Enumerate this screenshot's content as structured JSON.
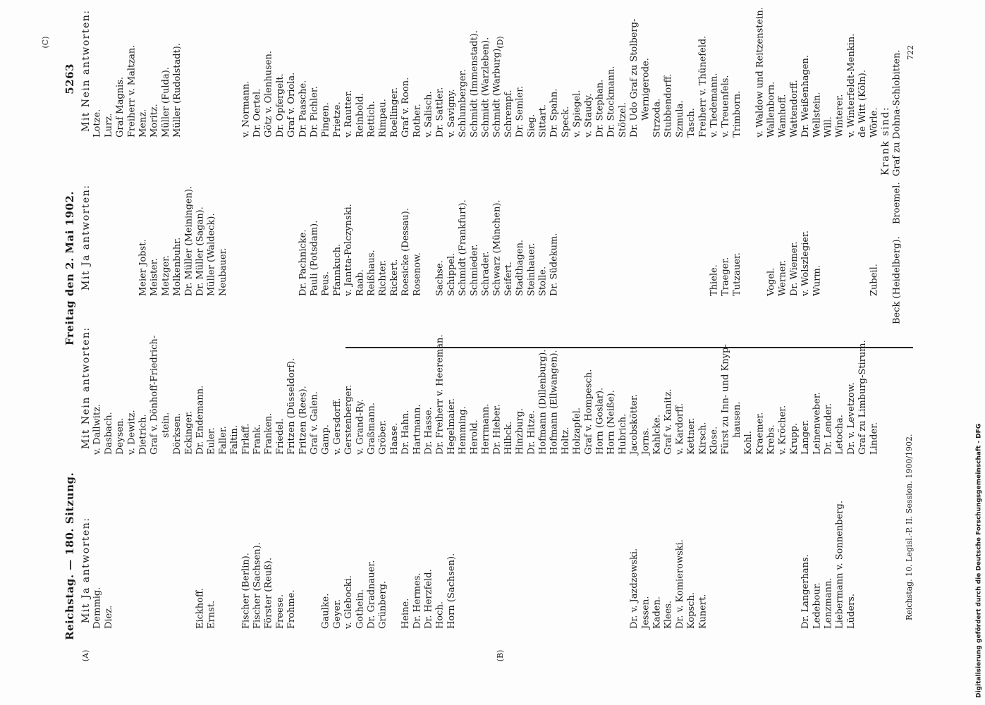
{
  "header": {
    "left": "Reichstag. — 180. Sitzung.",
    "center": "Freitag den 2. Mai 1902.",
    "page": "5263"
  },
  "margin_marks": [
    "(A)",
    "(B)",
    "(C)",
    "(D)"
  ],
  "columns": [
    {
      "heading": "Mit Ja antworten:",
      "groups": [
        [
          "Demmig.",
          "Diez."
        ],
        [
          "Eickhoff.",
          "Ernst."
        ],
        [
          "Fischer (Berlin).",
          "Fischer (Sachsen).",
          "Förster (Reuß).",
          "Freese.",
          "Frohme."
        ],
        [
          "Gaulke.",
          "Geyer.",
          "v. Glebocki.",
          "Gothein.",
          "Dr. Gradnauer.",
          "Grünberg."
        ],
        [
          "Heine.",
          "Dr. Hermes.",
          "Dr. Herzfeld.",
          "Hoch.",
          "Horn (Sachsen)."
        ],
        [
          "Dr. v. Jazdzewski.",
          "Jessen.",
          "Kaden.",
          "Klees.",
          "Dr. v. Komierowski.",
          "Kopsch.",
          "Kunert."
        ],
        [
          "Dr. Langerhans.",
          "Ledebour.",
          "Lenzmann.",
          "Liebermann v. Sonnenberg.",
          "Lüders."
        ]
      ]
    },
    {
      "heading": "Mit Nein antworten:",
      "groups": [
        [
          "v. Dallwitz.",
          "Dasbach.",
          "Deysen.",
          "v. Dewitz.",
          "Dietrich.",
          "Graf v. Dönhoff-Friedrich-",
          "stein.",
          "Dörksen.",
          "Eckinger.",
          "Dr. Endemann.",
          "Euler.",
          "Faller.",
          "Faltin.",
          "Firlaff.",
          "Frank.",
          "Franken.",
          "Friedel.",
          "Fritzen (Düsseldorf).",
          "Fritzen (Rees).",
          "Graf v. Galen.",
          "Gamp.",
          "v. Gersdorff.",
          "Gerstenberger.",
          "v. Grand-Ry.",
          "Graßmann.",
          "Gröber.",
          "Haase.",
          "Dr. Hahn.",
          "Hartmann.",
          "Dr. Hasse.",
          "Dr. Freiherr v. Heereman.",
          "Hegelmaier.",
          "Hemming.",
          "Herold.",
          "Herrmann.",
          "Dr. Hieber.",
          "Hilbck.",
          "Hinzburg.",
          "Dr. Hitze.",
          "Hofmann (Dillenburg).",
          "Hofmann (Ellwangen).",
          "Holtz.",
          "Holzapfel.",
          "Graf v. Hompesch.",
          "Horn (Goslar).",
          "Horn (Neiße).",
          "Hubrich.",
          "Jacobskötter.",
          "Jorns.",
          "Kahlcke.",
          "Graf v. Kanitz.",
          "v. Kardorff.",
          "Kettner.",
          "Kirsch.",
          "Klose.",
          "Fürst zu Inn- und Knyp-",
          "hausen.",
          "Kohl.",
          "Kraemer.",
          "Krebs.",
          "v. Kröcher.",
          "Krupp.",
          "Langer.",
          "Leinenweber.",
          "Dr. Lender.",
          "Letocha.",
          "Dr. v. Levetzow.",
          "Graf zu Limburg-Stirum.",
          "Linder."
        ]
      ]
    },
    {
      "heading": "Mit Ja antworten:",
      "groups": [
        [
          "Meier Jobst.",
          "Meister.",
          "Metzger.",
          "Molkenbuhr.",
          "Dr. Müller (Meiningen).",
          "Dr. Müller (Sagan).",
          "Müller (Waldeck).",
          "Neubauer."
        ],
        [
          "Dr. Pachnicke.",
          "Pauli (Potsdam).",
          "Peus.",
          "Pfannkuch.",
          "v. Jantta-Polczynski.",
          "Raab.",
          "Reißhaus.",
          "Richter.",
          "Rickert.",
          "Roesicke (Dessau).",
          "Rosenow."
        ],
        [
          "Sachse.",
          "Schippel.",
          "Schmidt (Frankfurt).",
          "Schmieder.",
          "Schrader.",
          "Schwarz (München).",
          "Seifert.",
          "Stadthagen.",
          "Steinhauer.",
          "Stolle.",
          "Dr. Südekum."
        ],
        [
          "Thiele.",
          "Traeger.",
          "Tutzauer."
        ],
        [
          "Vogel.",
          "Werner.",
          "Dr. Wiemer.",
          "v. Wolszlegier.",
          "Wurm."
        ],
        [
          "Zubeil."
        ]
      ]
    },
    {
      "heading": "Mit Nein antworten:",
      "groups": [
        [
          "Lotze.",
          "Lurz.",
          "Graf Magnis.",
          "Freiherr v. Maltzan.",
          "Menz.",
          "Moritz.",
          "Müller (Fulda).",
          "Müller (Rudolstadt)."
        ],
        [
          "v. Normann.",
          "Dr. Oertel.",
          "Götz v. Olenhusen.",
          "Dr. Opfergelt.",
          "Graf v. Oriola.",
          "Dr. Paasche.",
          "Dr. Pichler.",
          "Pingen.",
          "Prietze."
        ],
        [
          "v. Rautter.",
          "Reinbold.",
          "Rettich.",
          "Rimpau.",
          "Roellinger.",
          "Graf v. Roon.",
          "Rother.",
          "v. Salisch.",
          "Dr. Sattler.",
          "v. Savigny.",
          "Schlumberger.",
          "Schmidt (Immenstadt).",
          "Schmidt (Warzleben).",
          "Schmidt (Warburg).",
          "Schrempf.",
          "Dr. Semler.",
          "Sieg.",
          "Sittart.",
          "Dr. Spahn.",
          "Speck.",
          "v. Spiegel.",
          "v. Staudy.",
          "Dr. Stephan.",
          "Dr. Stockmann.",
          "Stötzel.",
          "Dr. Udo Graf zu Stolberg-",
          "Wernigerode.",
          "Strzoda.",
          "Stubbendorff.",
          "Szmula.",
          "Tasch.",
          "Freiherr v. Thünefeld.",
          "v. Tiedemann.",
          "v. Treuenfels.",
          "Trimborn."
        ],
        [
          "v. Waldow und Reitzenstein.",
          "Wallenborn.",
          "Wamhoff.",
          "Wattendorff.",
          "Dr. Weißenhagen.",
          "Wellstein.",
          "Will.",
          "Winterer.",
          "v. Winterfeldt-Menkin.",
          "de Witt (Köln).",
          "Wörle."
        ]
      ]
    }
  ],
  "sick": {
    "heading": "Krank sind:",
    "names": [
      "Beck (Heidelberg).",
      "Broemel.",
      "Graf zu Dohna-Schlobitten."
    ]
  },
  "footer": "Reichstag. 10. Legisl.-P. II. Session. 1900/1902.",
  "stamp": "722",
  "credit": "Digitalisierung gefördert durch die Deutsche Forschungsgemeinschaft - DFG"
}
